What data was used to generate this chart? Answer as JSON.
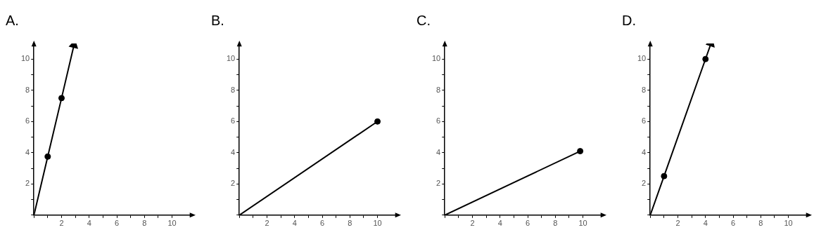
{
  "chart_data": [
    {
      "type": "line",
      "title": "A.",
      "xlim": [
        0,
        11.5
      ],
      "ylim": [
        0,
        11
      ],
      "xticks": [
        {
          "value": 0,
          "label": null
        },
        {
          "value": 1,
          "label": null
        },
        2,
        {
          "value": 3,
          "label": null
        },
        4,
        {
          "value": 5,
          "label": null
        },
        6,
        {
          "value": 7,
          "label": null
        },
        8,
        {
          "value": 9,
          "label": null
        },
        10
      ],
      "yticks": [
        {
          "value": 0,
          "label": null
        },
        {
          "value": 1,
          "label": null
        },
        2,
        {
          "value": 3,
          "label": null
        },
        4,
        {
          "value": 5,
          "label": null
        },
        6,
        {
          "value": 7,
          "label": null
        },
        8,
        {
          "value": 9,
          "label": null
        },
        10
      ],
      "grid": false,
      "legend": false,
      "series": [
        {
          "type": "line",
          "color": "#000000",
          "marker": "none",
          "x": [
            0,
            1,
            2,
            2.9
          ],
          "values": [
            0,
            3.75,
            7.5,
            10.9
          ]
        },
        {
          "type": "scatter",
          "color": "#000000",
          "marker": "circle",
          "x": [
            1,
            2
          ],
          "values": [
            3.75,
            7.5
          ]
        }
      ]
    },
    {
      "type": "line",
      "title": "B.",
      "xlim": [
        0,
        11.5
      ],
      "ylim": [
        0,
        11
      ],
      "xticks": [
        {
          "value": 0,
          "label": null
        },
        {
          "value": 1,
          "label": null
        },
        2,
        {
          "value": 3,
          "label": null
        },
        4,
        {
          "value": 5,
          "label": null
        },
        6,
        {
          "value": 7,
          "label": null
        },
        8,
        {
          "value": 9,
          "label": null
        },
        10
      ],
      "yticks": [
        {
          "value": 0,
          "label": null
        },
        {
          "value": 1,
          "label": null
        },
        2,
        {
          "value": 3,
          "label": null
        },
        4,
        {
          "value": 5,
          "label": null
        },
        6,
        {
          "value": 7,
          "label": null
        },
        8,
        {
          "value": 9,
          "label": null
        },
        10
      ],
      "grid": false,
      "legend": false,
      "series": [
        {
          "type": "line",
          "color": "#000000",
          "marker": "none",
          "x": [
            0,
            10
          ],
          "values": [
            0,
            6
          ]
        },
        {
          "type": "scatter",
          "color": "#000000",
          "marker": "circle",
          "x": [
            10
          ],
          "values": [
            6
          ]
        }
      ]
    },
    {
      "type": "line",
      "title": "C.",
      "xlim": [
        0,
        11.5
      ],
      "ylim": [
        0,
        11
      ],
      "xticks": [
        {
          "value": 0,
          "label": null
        },
        {
          "value": 1,
          "label": null
        },
        2,
        {
          "value": 3,
          "label": null
        },
        4,
        {
          "value": 5,
          "label": null
        },
        6,
        {
          "value": 7,
          "label": null
        },
        8,
        {
          "value": 9,
          "label": null
        },
        10
      ],
      "yticks": [
        {
          "value": 0,
          "label": null
        },
        {
          "value": 1,
          "label": null
        },
        2,
        {
          "value": 3,
          "label": null
        },
        4,
        {
          "value": 5,
          "label": null
        },
        6,
        {
          "value": 7,
          "label": null
        },
        8,
        {
          "value": 9,
          "label": null
        },
        10
      ],
      "grid": false,
      "legend": false,
      "series": [
        {
          "type": "line",
          "color": "#000000",
          "marker": "none",
          "x": [
            0,
            9.8
          ],
          "values": [
            0,
            4.1
          ]
        },
        {
          "type": "scatter",
          "color": "#000000",
          "marker": "circle",
          "x": [
            9.8
          ],
          "values": [
            4.1
          ]
        }
      ]
    },
    {
      "type": "line",
      "title": "D.",
      "xlim": [
        0,
        11.5
      ],
      "ylim": [
        0,
        11
      ],
      "xticks": [
        {
          "value": 0,
          "label": null
        },
        {
          "value": 1,
          "label": null
        },
        2,
        {
          "value": 3,
          "label": null
        },
        4,
        {
          "value": 5,
          "label": null
        },
        6,
        {
          "value": 7,
          "label": null
        },
        8,
        {
          "value": 9,
          "label": null
        },
        10
      ],
      "yticks": [
        {
          "value": 0,
          "label": null
        },
        {
          "value": 1,
          "label": null
        },
        2,
        {
          "value": 3,
          "label": null
        },
        4,
        {
          "value": 5,
          "label": null
        },
        6,
        {
          "value": 7,
          "label": null
        },
        8,
        {
          "value": 9,
          "label": null
        },
        10
      ],
      "grid": false,
      "legend": false,
      "series": [
        {
          "type": "line",
          "color": "#000000",
          "marker": "none",
          "x": [
            0,
            1,
            4,
            4.4
          ],
          "values": [
            0,
            2.5,
            10,
            11
          ]
        },
        {
          "type": "scatter",
          "color": "#000000",
          "marker": "circle",
          "x": [
            1,
            4
          ],
          "values": [
            2.5,
            10
          ]
        }
      ]
    }
  ]
}
